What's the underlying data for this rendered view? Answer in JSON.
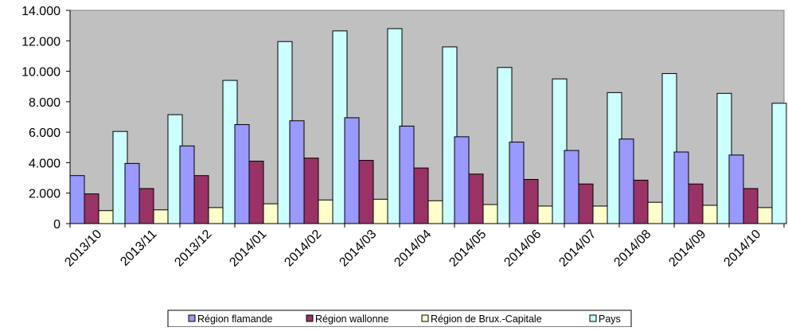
{
  "chart_data": {
    "type": "bar",
    "categories": [
      "2013/10",
      "2013/11",
      "2013/12",
      "2014/01",
      "2014/02",
      "2014/03",
      "2014/04",
      "2014/05",
      "2014/06",
      "2014/07",
      "2014/08",
      "2014/09",
      "2014/10"
    ],
    "series": [
      {
        "name": "Région flamande",
        "color": "#9999ff",
        "values": [
          3150,
          3950,
          5100,
          6500,
          6750,
          6950,
          6400,
          5700,
          5350,
          4800,
          5550,
          4700,
          4500
        ]
      },
      {
        "name": "Région wallonne",
        "color": "#993366",
        "values": [
          1950,
          2300,
          3150,
          4100,
          4300,
          4150,
          3650,
          3250,
          2900,
          2600,
          2850,
          2600,
          2300
        ]
      },
      {
        "name": "Région de Brux.-Capitale",
        "color": "#ffffcc",
        "values": [
          850,
          900,
          1050,
          1300,
          1550,
          1600,
          1500,
          1250,
          1150,
          1150,
          1400,
          1200,
          1050
        ]
      },
      {
        "name": "Pays",
        "color": "#ccffff",
        "values": [
          6050,
          7150,
          9400,
          11950,
          12650,
          12800,
          11600,
          10250,
          9500,
          8600,
          9850,
          8550,
          7900
        ]
      }
    ],
    "y_ticks": [
      "0",
      "2.000",
      "4.000",
      "6.000",
      "8.000",
      "10.000",
      "12.000",
      "14.000"
    ],
    "ylim": [
      0,
      14000
    ],
    "plot_background": "#c0c0c0",
    "grid": false,
    "legend_position": "bottom"
  }
}
